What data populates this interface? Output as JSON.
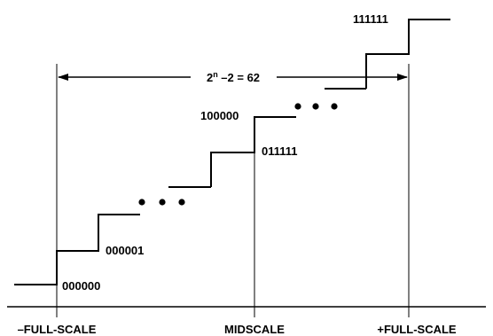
{
  "span_label": {
    "base": "2",
    "exponent": "n",
    "rest": " –2 = 62"
  },
  "codes": {
    "c000000": "000000",
    "c000001": "000001",
    "c011111": "011111",
    "c100000": "100000",
    "c111111": "111111"
  },
  "axis": {
    "minus_full_scale": "–FULL-SCALE",
    "midscale": "MIDSCALE",
    "plus_full_scale": "+FULL-SCALE"
  },
  "colors": {
    "ink": "#000000",
    "background": "#ffffff"
  }
}
